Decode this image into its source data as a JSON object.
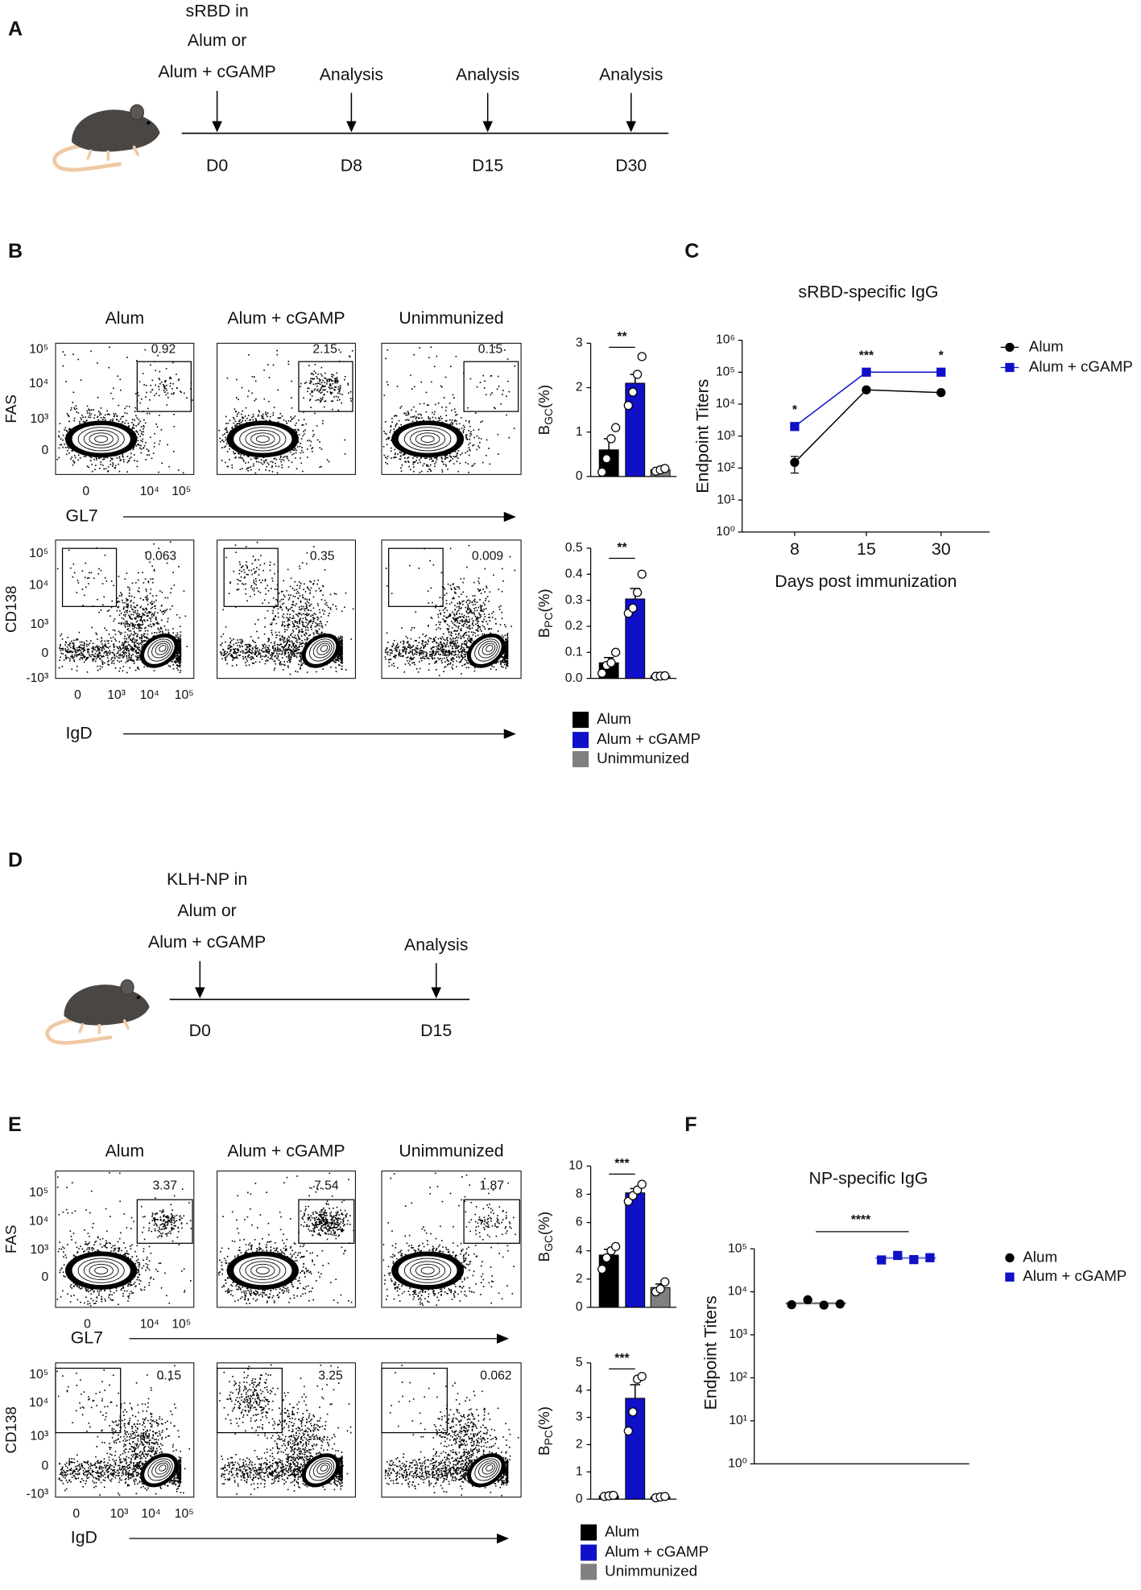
{
  "panel_labels": [
    "A",
    "B",
    "C",
    "D",
    "E",
    "F"
  ],
  "timeline_a": {
    "header": [
      "sRBD in",
      "Alum or",
      "Alum + cGAMP"
    ],
    "events": [
      {
        "label": "D0"
      },
      {
        "above": "Analysis",
        "label": "D8"
      },
      {
        "above": "Analysis",
        "label": "D15"
      },
      {
        "above": "Analysis",
        "label": "D30"
      }
    ]
  },
  "timeline_d": {
    "header": [
      "KLH-NP in",
      "Alum or",
      "Alum + cGAMP"
    ],
    "events": [
      {
        "label": "D0"
      },
      {
        "above": "Analysis",
        "label": "D15"
      }
    ]
  },
  "flow_b": {
    "columns": [
      "Alum",
      "Alum + cGAMP",
      "Unimmunized"
    ],
    "rows": [
      {
        "ylabel": "FAS",
        "xlabel": "GL7",
        "yticks": [
          "10⁵",
          "10⁴",
          "10³",
          "0"
        ],
        "xticks": [
          "0",
          "10⁴",
          "10⁵"
        ],
        "gates": [
          0.92,
          2.15,
          0.15
        ]
      },
      {
        "ylabel": "CD138",
        "xlabel": "IgD",
        "yticks": [
          "10⁵",
          "10⁴",
          "10³",
          "0",
          "-10³"
        ],
        "xticks": [
          "0",
          "10³",
          "10⁴",
          "10⁵"
        ],
        "gates": [
          0.063,
          0.35,
          0.009
        ]
      }
    ]
  },
  "flow_e": {
    "columns": [
      "Alum",
      "Alum + cGAMP",
      "Unimmunized"
    ],
    "rows": [
      {
        "ylabel": "FAS",
        "xlabel": "GL7",
        "yticks": [
          "10⁵",
          "10⁴",
          "10³",
          "0"
        ],
        "xticks": [
          "0",
          "10⁴",
          "10⁵"
        ],
        "gates": [
          3.37,
          7.54,
          1.87
        ]
      },
      {
        "ylabel": "CD138",
        "xlabel": "IgD",
        "yticks": [
          "10⁵",
          "10⁴",
          "10³",
          "0",
          "-10³"
        ],
        "xticks": [
          "0",
          "10³",
          "10⁴",
          "10⁵"
        ],
        "gates": [
          0.15,
          3.25,
          0.062
        ]
      }
    ]
  },
  "chart_data": [
    {
      "type": "bar",
      "ylabel": [
        "B",
        "GC",
        "(%)"
      ],
      "ylim": [
        0,
        3
      ],
      "yticks": [
        0,
        1,
        2,
        3
      ],
      "annotation": "**",
      "series": [
        {
          "color": "#000000",
          "values": [
            0.6
          ],
          "errors": [
            0.25
          ],
          "points": [
            0.1,
            0.4,
            0.85,
            1.1
          ]
        },
        {
          "color": "#1010c8",
          "values": [
            2.1
          ],
          "errors": [
            0.2
          ],
          "points": [
            1.6,
            1.9,
            2.3,
            2.7
          ]
        },
        {
          "color": "#808080",
          "values": [
            0.15
          ],
          "errors": [
            0.02
          ],
          "points": [
            0.12,
            0.15,
            0.18
          ]
        }
      ]
    },
    {
      "type": "bar",
      "ylabel": [
        "B",
        "PC",
        "(%)"
      ],
      "ylim": [
        0,
        0.5
      ],
      "yticks": [
        {
          "value": 0,
          "label": "0.0"
        },
        0.1,
        0.2,
        0.3,
        0.4,
        0.5
      ],
      "annotation": "**",
      "series": [
        {
          "name": "Alum",
          "color": "#000000",
          "values": [
            0.06
          ],
          "errors": [
            0.02
          ],
          "points": [
            0.02,
            0.05,
            0.06,
            0.1
          ]
        },
        {
          "name": "Alum + cGAMP",
          "color": "#1010c8",
          "values": [
            0.305
          ],
          "errors": [
            0.04
          ],
          "points": [
            0.25,
            0.27,
            0.33,
            0.4
          ]
        },
        {
          "name": "Unimmunized",
          "color": "#808080",
          "values": [
            0.009
          ],
          "errors": [
            0.001
          ],
          "points": [
            0.008,
            0.009,
            0.01
          ]
        }
      ]
    },
    {
      "type": "line",
      "title": "sRBD-specific IgG",
      "xlabel": "Days post immunization",
      "ylabel": "Endpoint Titers",
      "categories": [
        "8",
        "15",
        "30"
      ],
      "log_scale": true,
      "ylim": [
        1,
        1000000
      ],
      "yticks": [
        {
          "value": 1,
          "label": "10⁰"
        },
        {
          "value": 10,
          "label": "10¹"
        },
        {
          "value": 100,
          "label": "10²"
        },
        {
          "value": 1000,
          "label": "10³"
        },
        {
          "value": 10000,
          "label": "10⁴"
        },
        {
          "value": 100000,
          "label": "10⁵"
        },
        {
          "value": 1000000,
          "label": "10⁶"
        }
      ],
      "annotations": [
        "*",
        "***",
        "*"
      ],
      "legend": "upper right",
      "series": [
        {
          "name": "Alum",
          "color": "#000000",
          "marker": "circle",
          "values": [
            150,
            28000,
            23000
          ],
          "errors": [
            80,
            null,
            null
          ]
        },
        {
          "name": "Alum + cGAMP",
          "color": "#1010c8",
          "marker": "square",
          "values": [
            2000,
            100000,
            100000
          ],
          "errors": [
            null,
            null,
            null
          ]
        }
      ]
    },
    {
      "type": "bar",
      "ylabel": [
        "B",
        "GC",
        "(%)"
      ],
      "ylim": [
        0,
        10
      ],
      "yticks": [
        0,
        2,
        4,
        6,
        8,
        10
      ],
      "annotation": "***",
      "series": [
        {
          "color": "#000000",
          "values": [
            3.7
          ],
          "errors": [
            0.4
          ],
          "points": [
            2.7,
            3.5,
            4.0,
            4.3
          ]
        },
        {
          "color": "#1010c8",
          "values": [
            8.1
          ],
          "errors": [
            0.3
          ],
          "points": [
            7.5,
            7.9,
            8.3,
            8.7
          ]
        },
        {
          "color": "#808080",
          "values": [
            1.4
          ],
          "errors": [
            0.25
          ],
          "points": [
            1.1,
            1.3,
            1.8
          ]
        }
      ]
    },
    {
      "type": "bar",
      "ylabel": [
        "B",
        "PC",
        "(%)"
      ],
      "ylim": [
        0,
        5
      ],
      "yticks": [
        0,
        1,
        2,
        3,
        4,
        5
      ],
      "annotation": "***",
      "series": [
        {
          "name": "Alum",
          "color": "#000000",
          "values": [
            0.12
          ],
          "errors": [
            0.02
          ],
          "points": [
            0.1,
            0.12,
            0.14
          ]
        },
        {
          "name": "Alum + cGAMP",
          "color": "#1010c8",
          "values": [
            3.7
          ],
          "errors": [
            0.5
          ],
          "points": [
            2.5,
            3.2,
            4.4,
            4.5
          ]
        },
        {
          "name": "Unimmunized",
          "color": "#808080",
          "values": [
            0.08
          ],
          "errors": [
            0.01
          ],
          "points": [
            0.05,
            0.08,
            0.1
          ]
        }
      ]
    },
    {
      "type": "strip",
      "title": "NP-specific IgG",
      "ylabel": "Endpoint Titers",
      "log_scale": true,
      "ylim": [
        1,
        100000
      ],
      "yticks": [
        {
          "value": 1,
          "label": "10⁰"
        },
        {
          "value": 10,
          "label": "10¹"
        },
        {
          "value": 100,
          "label": "10²"
        },
        {
          "value": 1000,
          "label": "10³"
        },
        {
          "value": 10000,
          "label": "10⁴"
        },
        {
          "value": 100000,
          "label": "10⁵"
        }
      ],
      "annotation": "****",
      "legend": "upper right",
      "series": [
        {
          "name": "Alum",
          "color": "#000000",
          "marker": "circle",
          "values": [
            5000,
            6500,
            4900,
            5200
          ],
          "mean": 5400
        },
        {
          "name": "Alum + cGAMP",
          "color": "#1010c8",
          "marker": "square",
          "values": [
            55000,
            70000,
            56000,
            62000
          ],
          "mean": 61000
        }
      ]
    }
  ]
}
